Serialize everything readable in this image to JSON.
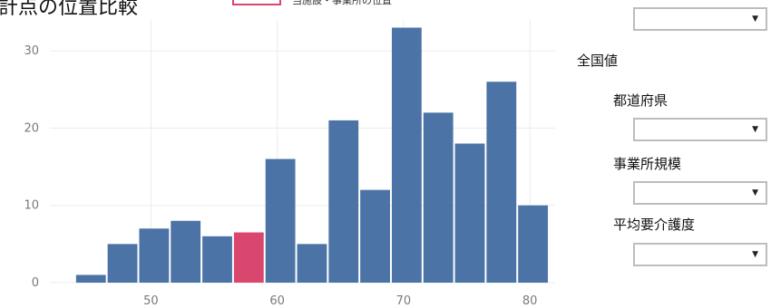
{
  "title": "計点の位置比較",
  "legend": {
    "label": "当施設・事業所の位置",
    "color": "#d9466e"
  },
  "chart_data": {
    "type": "bar",
    "title": "計点の位置比較",
    "xlabel": "",
    "ylabel": "",
    "xlim": [
      42,
      82
    ],
    "ylim": [
      0,
      34
    ],
    "xticks": [
      50,
      60,
      70,
      80
    ],
    "yticks": [
      0,
      10,
      20,
      30
    ],
    "grid": true,
    "bin_width": 2.5,
    "bins": [
      {
        "start": 44.0,
        "value": 1
      },
      {
        "start": 46.5,
        "value": 5
      },
      {
        "start": 49.0,
        "value": 7
      },
      {
        "start": 51.5,
        "value": 8
      },
      {
        "start": 54.0,
        "value": 6
      },
      {
        "start": 56.5,
        "value": 6.5,
        "highlight": true
      },
      {
        "start": 59.0,
        "value": 16
      },
      {
        "start": 61.5,
        "value": 5
      },
      {
        "start": 64.0,
        "value": 21
      },
      {
        "start": 66.5,
        "value": 12
      },
      {
        "start": 69.0,
        "value": 33
      },
      {
        "start": 71.5,
        "value": 22
      },
      {
        "start": 74.0,
        "value": 18
      },
      {
        "start": 76.5,
        "value": 26
      },
      {
        "start": 79.0,
        "value": 10
      }
    ],
    "colors": {
      "bar": "#4c73a6",
      "highlight": "#d9466e",
      "grid": "#ececec"
    }
  },
  "panel": {
    "heading": "全国値",
    "filters": [
      {
        "label": "都道府県",
        "value": ""
      },
      {
        "label": "事業所規模",
        "value": ""
      },
      {
        "label": "平均要介護度",
        "value": ""
      }
    ],
    "caret": "▼"
  }
}
